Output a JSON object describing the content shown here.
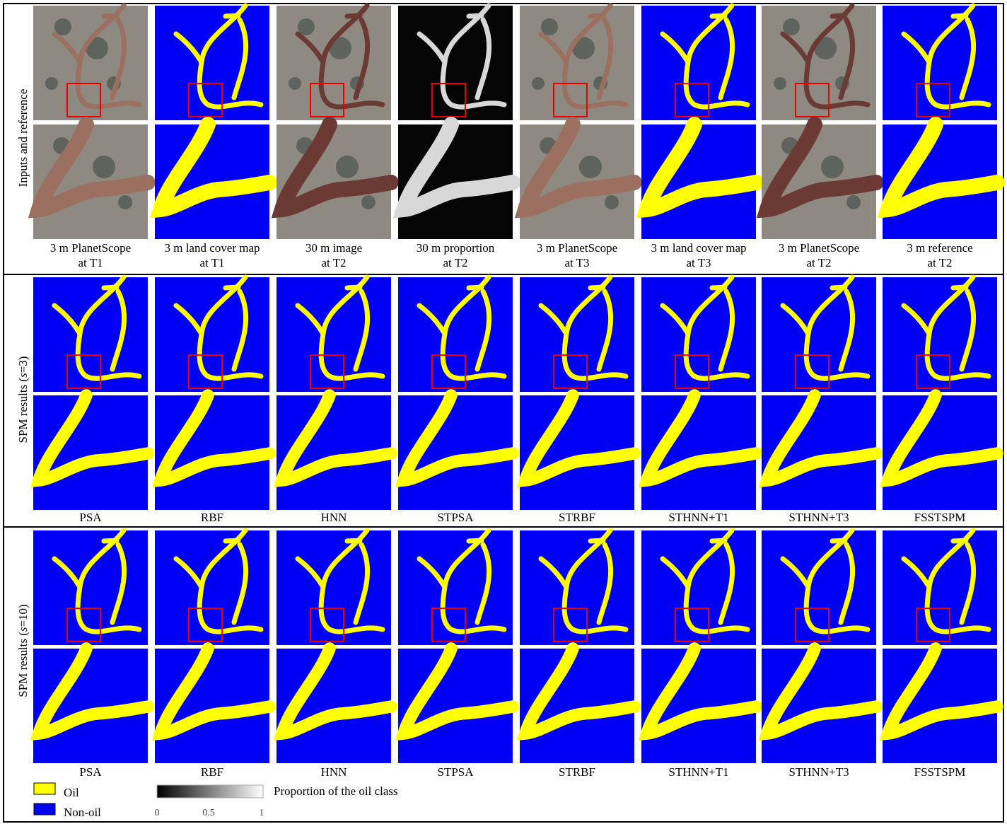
{
  "sections": [
    {
      "label": [
        "Inputs and reference"
      ],
      "captions": [
        [
          "3 m PlanetScope",
          "at T1"
        ],
        [
          "3 m land cover map",
          "at T1"
        ],
        [
          "30 m image",
          "at T2"
        ],
        [
          "30 m proportion",
          "at T2"
        ],
        [
          "3 m PlanetScope",
          "at T3"
        ],
        [
          "3 m land cover map",
          "at T3"
        ],
        [
          "3 m PlanetScope",
          "at T2"
        ],
        [
          "3 m reference",
          "at T2"
        ]
      ]
    },
    {
      "label": [
        "SPM results (",
        "s",
        "=3)"
      ],
      "captions": [
        "PSA",
        "RBF",
        "HNN",
        "STPSA",
        "STRBF",
        "STHNN+T1",
        "STHNN+T3",
        "FSSTSPM"
      ]
    },
    {
      "label": [
        "SPM results (",
        "s",
        "=10)"
      ],
      "captions": [
        "PSA",
        "RBF",
        "HNN",
        "STPSA",
        "STRBF",
        "STHNN+T1",
        "STHNN+T3",
        "FSSTSPM"
      ]
    }
  ],
  "legend": {
    "items": [
      "Oil",
      "Non-oil"
    ],
    "colorbar": {
      "title": "Proportion of the oil class",
      "ticks": [
        "0",
        "0.5",
        "1"
      ]
    }
  }
}
